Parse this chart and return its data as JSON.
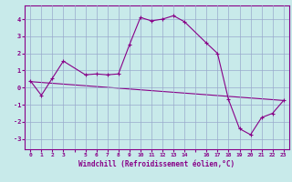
{
  "xlabel": "Windchill (Refroidissement éolien,°C)",
  "background_color": "#c8eaea",
  "line_color": "#880088",
  "grid_color": "#99aacc",
  "xlim": [
    -0.5,
    23.5
  ],
  "ylim": [
    -3.6,
    4.8
  ],
  "yticks": [
    -3,
    -2,
    -1,
    0,
    1,
    2,
    3,
    4
  ],
  "series1_x": [
    0,
    1,
    2,
    3,
    5,
    6,
    7,
    8,
    9,
    10,
    11,
    12,
    13,
    14,
    16,
    17,
    18,
    19,
    20,
    21,
    22,
    23
  ],
  "series1_y": [
    0.4,
    -0.45,
    0.55,
    1.55,
    0.75,
    0.8,
    0.75,
    0.8,
    2.5,
    4.1,
    3.9,
    4.0,
    4.2,
    3.85,
    2.6,
    2.0,
    -0.7,
    -2.4,
    -2.75,
    -1.75,
    -1.5,
    -0.75
  ],
  "series2_x": [
    0,
    23
  ],
  "series2_y": [
    0.35,
    -0.75
  ],
  "marker": "+"
}
